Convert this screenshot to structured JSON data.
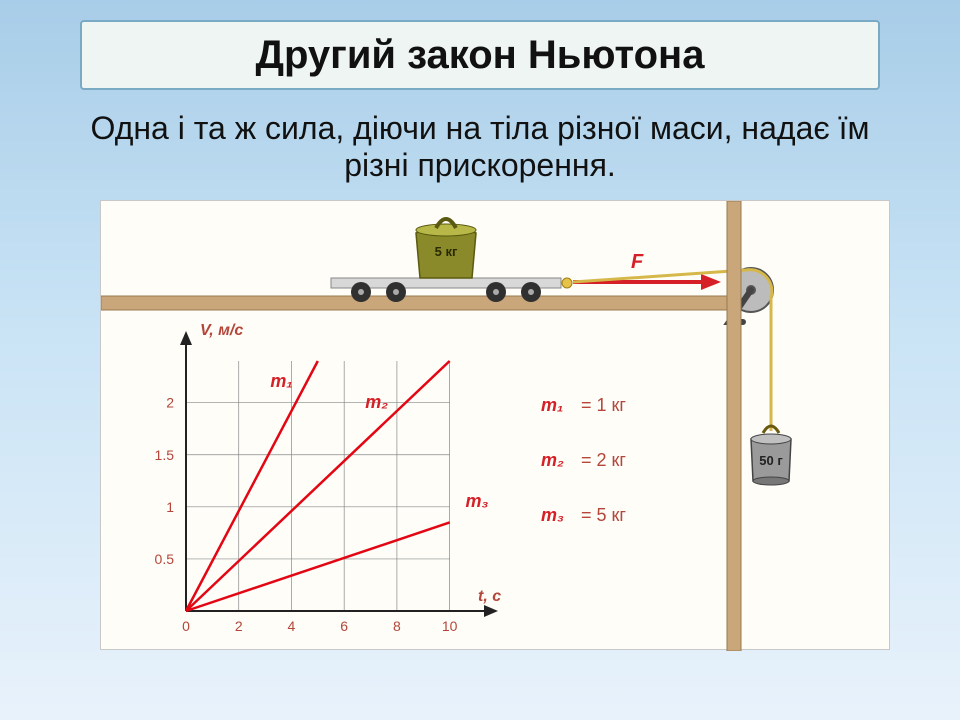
{
  "title": "Другий закон Ньютона",
  "subtitle": "Одна і та ж сила, діючи на тіла різної маси, надає їм різні прискорення.",
  "apparatus": {
    "cart_weight_label": "5 кг",
    "cart_weight_color": "#8a8a2a",
    "force_label": "F",
    "force_color": "#d62027",
    "hanging_weight_label": "50 г",
    "hanging_weight_color": "#6a6a6a",
    "table_color": "#c9a77a",
    "table_edge": "#9a7a50",
    "pulley_color": "#888888",
    "wheel_color": "#303030",
    "rope_color": "#d6b84a"
  },
  "chart": {
    "type": "line",
    "y_axis_label": "V, м/с",
    "x_axis_label": "t, с",
    "x_ticks": [
      0,
      2,
      4,
      6,
      8,
      10
    ],
    "y_ticks": [
      0.5,
      1,
      1.5,
      2
    ],
    "xlim": [
      0,
      11
    ],
    "ylim": [
      0,
      2.4
    ],
    "axis_color": "#222222",
    "grid_color": "#888888",
    "line_color": "#e30613",
    "line_width": 2.5,
    "series": [
      {
        "name": "m1",
        "label": "m₁",
        "x_end": 5,
        "y_end": 2.4,
        "label_at_x": 3.2,
        "label_at_y": 2.15
      },
      {
        "name": "m2",
        "label": "m₂",
        "x_end": 10,
        "y_end": 2.4,
        "label_at_x": 6.8,
        "label_at_y": 1.95
      },
      {
        "name": "m3",
        "label": "m₃",
        "x_end": 10,
        "y_end": 0.85,
        "label_at_x": 10.6,
        "label_at_y": 1.0
      }
    ],
    "label_fontsize": 16,
    "tick_fontsize": 14,
    "axis_label_color": "#b4463a",
    "series_label_color": "#d62027"
  },
  "legend": {
    "entries": [
      {
        "symbol": "m₁",
        "value": "= 1 кг"
      },
      {
        "symbol": "m₂",
        "value": "= 2 кг"
      },
      {
        "symbol": "m₃",
        "value": "= 5 кг"
      }
    ],
    "symbol_color": "#d62027",
    "value_color": "#b4463a",
    "fontsize": 18
  },
  "colors": {
    "panel_bg": "#fefdf8",
    "panel_border": "#c8c8c8"
  }
}
